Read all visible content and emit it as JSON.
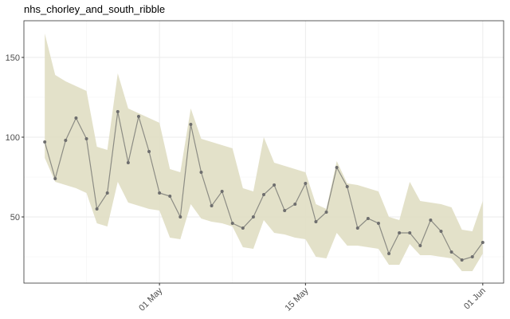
{
  "chart_data": {
    "type": "line",
    "title": "nhs_chorley_and_south_ribble",
    "x": [
      "04-20",
      "04-21",
      "04-22",
      "04-23",
      "04-24",
      "04-25",
      "04-26",
      "04-27",
      "04-28",
      "04-29",
      "04-30",
      "05-01",
      "05-02",
      "05-03",
      "05-04",
      "05-05",
      "05-06",
      "05-07",
      "05-08",
      "05-09",
      "05-10",
      "05-11",
      "05-12",
      "05-13",
      "05-14",
      "05-15",
      "05-16",
      "05-17",
      "05-18",
      "05-19",
      "05-20",
      "05-21",
      "05-22",
      "05-23",
      "05-24",
      "05-25",
      "05-26",
      "05-27",
      "05-28",
      "05-29",
      "05-30",
      "05-31",
      "06-01"
    ],
    "values": [
      97,
      74,
      98,
      112,
      99,
      55,
      65,
      116,
      84,
      113,
      91,
      65,
      63,
      50,
      108,
      78,
      57,
      66,
      46,
      43,
      50,
      64,
      70,
      54,
      58,
      71,
      47,
      53,
      81,
      69,
      43,
      49,
      46,
      27,
      40,
      40,
      32,
      48,
      41,
      28,
      23,
      25,
      34
    ],
    "upper": [
      165,
      139,
      135,
      132,
      129,
      94,
      92,
      140,
      118,
      115,
      112,
      109,
      80,
      78,
      118,
      99,
      97,
      95,
      93,
      68,
      66,
      100,
      84,
      82,
      80,
      78,
      58,
      55,
      85,
      71,
      70,
      68,
      66,
      50,
      48,
      72,
      60,
      59,
      58,
      56,
      42,
      41,
      60
    ],
    "lower": [
      87,
      72,
      70,
      68,
      65,
      46,
      44,
      72,
      59,
      57,
      55,
      54,
      37,
      36,
      58,
      49,
      47,
      46,
      44,
      31,
      30,
      48,
      40,
      39,
      37,
      36,
      25,
      24,
      40,
      32,
      32,
      31,
      30,
      20,
      20,
      33,
      26,
      26,
      25,
      24,
      16,
      16,
      27
    ],
    "color": "#8c8c84",
    "point_color": "#6e6e6e",
    "band_color": "#e2dfc6",
    "xlim": [
      "04-18",
      "06-03"
    ],
    "xticks": [
      {
        "value": "05-01",
        "label": "01 May"
      },
      {
        "value": "05-15",
        "label": "15 May"
      },
      {
        "value": "06-01",
        "label": "01 Jun"
      }
    ],
    "xminor": [
      "04-24",
      "05-08",
      "05-22"
    ],
    "ylim": [
      8.5,
      173
    ],
    "yticks": [
      50,
      100,
      150
    ],
    "yminor": [
      25,
      75,
      125
    ],
    "grid": true
  }
}
